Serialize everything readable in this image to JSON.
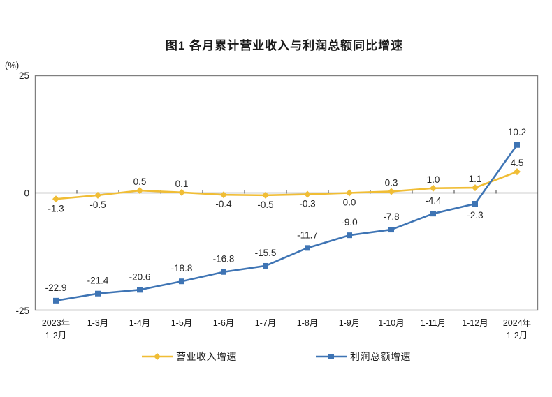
{
  "chart_data": {
    "type": "line",
    "title": "图1  各月累计营业收入与利润总额同比增速",
    "unit_label": "(%)",
    "categories": [
      "2023年\n1-2月",
      "1-3月",
      "1-4月",
      "1-5月",
      "1-6月",
      "1-7月",
      "1-8月",
      "1-9月",
      "1-10月",
      "1-11月",
      "1-12月",
      "2024年\n1-2月"
    ],
    "ylim": [
      -25,
      25
    ],
    "yticks": [
      25,
      0,
      -25
    ],
    "grid": false,
    "legend_position": "bottom",
    "axis_color": "#7f7f7f",
    "zero_line_color": "#404040",
    "label_color": "#262626",
    "series": [
      {
        "name": "营业收入增速",
        "color": "#F0BD35",
        "marker": "diamond",
        "values": [
          -1.3,
          -0.5,
          0.5,
          0.1,
          -0.4,
          -0.5,
          -0.3,
          0.0,
          0.3,
          1.0,
          1.1,
          4.5
        ],
        "labels": [
          "-1.3",
          "-0.5",
          "0.5",
          "0.1",
          "-0.4",
          "-0.5",
          "-0.3",
          "0.0",
          "0.3",
          "1.0",
          "1.1",
          "4.5"
        ],
        "label_side": [
          "below",
          "below",
          "above",
          "above",
          "below",
          "below",
          "below",
          "below",
          "above",
          "above",
          "above",
          "above"
        ]
      },
      {
        "name": "利润总额增速",
        "color": "#3E74B4",
        "marker": "square",
        "values": [
          -22.9,
          -21.4,
          -20.6,
          -18.8,
          -16.8,
          -15.5,
          -11.7,
          -9.0,
          -7.8,
          -4.4,
          -2.3,
          10.2
        ],
        "labels": [
          "-22.9",
          "-21.4",
          "-20.6",
          "-18.8",
          "-16.8",
          "-15.5",
          "-11.7",
          "-9.0",
          "-7.8",
          "-4.4",
          "-2.3",
          "10.2"
        ],
        "label_side": [
          "above",
          "above",
          "above",
          "above",
          "above",
          "above",
          "above",
          "above",
          "above",
          "above",
          "below",
          "above"
        ]
      }
    ]
  }
}
